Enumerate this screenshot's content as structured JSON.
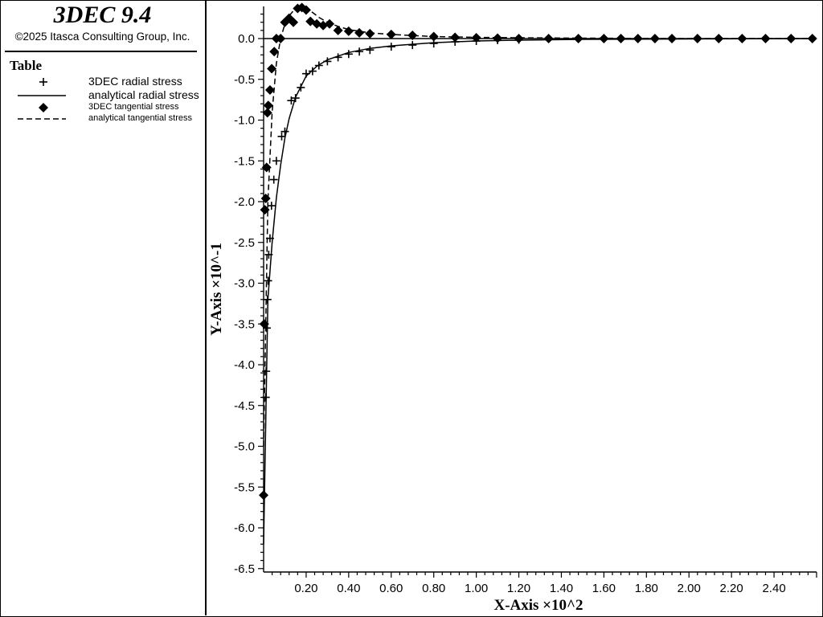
{
  "header": {
    "app_title": "3DEC 9.4",
    "copyright": "©2025 Itasca Consulting Group, Inc."
  },
  "legend": {
    "heading": "Table",
    "items": [
      {
        "label": "3DEC radial stress",
        "symbol": "plus-marker-icon"
      },
      {
        "label": "analytical radial stress",
        "symbol": "solid-line-icon"
      },
      {
        "label": "3DEC tangential stress",
        "symbol": "diamond-marker-icon"
      },
      {
        "label": "analytical tangential stress",
        "symbol": "dashed-line-icon"
      }
    ]
  },
  "chart_data": {
    "type": "line",
    "xlabel": "X-Axis ×10^2",
    "ylabel": "Y-Axis ×10^-1",
    "xlim": [
      0,
      2.6
    ],
    "ylim": [
      -6.5,
      0.4
    ],
    "x_ticks": [
      "0.20",
      "0.40",
      "0.60",
      "0.80",
      "1.00",
      "1.20",
      "1.40",
      "1.60",
      "1.80",
      "2.00",
      "2.20",
      "2.40"
    ],
    "y_ticks": [
      "0.0",
      "-0.5",
      "-1.0",
      "-1.5",
      "-2.0",
      "-2.5",
      "-3.0",
      "-3.5",
      "-4.0",
      "-4.5",
      "-5.0",
      "-5.5",
      "-6.0",
      "-6.5"
    ],
    "grid": false,
    "series": [
      {
        "name": "3DEC radial stress",
        "style": "plus",
        "x": [
          0.01,
          0.012,
          0.015,
          0.018,
          0.021,
          0.024,
          0.03,
          0.037,
          0.048,
          0.06,
          0.085,
          0.1,
          0.13,
          0.15,
          0.175,
          0.2,
          0.23,
          0.26,
          0.3,
          0.35,
          0.4,
          0.45,
          0.5,
          0.6,
          0.7,
          0.8,
          0.9,
          1.0,
          1.1,
          1.2
        ],
        "y": [
          -4.4,
          -4.08,
          -3.55,
          -3.2,
          -2.97,
          -2.65,
          -2.45,
          -2.05,
          -1.73,
          -1.5,
          -1.2,
          -1.14,
          -0.76,
          -0.73,
          -0.6,
          -0.43,
          -0.4,
          -0.33,
          -0.28,
          -0.23,
          -0.19,
          -0.16,
          -0.14,
          -0.1,
          -0.08,
          -0.06,
          -0.04,
          -0.03,
          -0.02,
          -0.015
        ]
      },
      {
        "name": "analytical radial stress",
        "style": "solid",
        "x": [
          0.0,
          0.02,
          0.04,
          0.06,
          0.08,
          0.1,
          0.12,
          0.15,
          0.2,
          0.25,
          0.3,
          0.4,
          0.5,
          0.6,
          0.8,
          1.0,
          1.2,
          1.5,
          2.0,
          2.58
        ],
        "y": [
          -6.2,
          -3.2,
          -2.5,
          -1.95,
          -1.55,
          -1.22,
          -0.98,
          -0.72,
          -0.46,
          -0.34,
          -0.26,
          -0.17,
          -0.12,
          -0.09,
          -0.05,
          -0.03,
          -0.02,
          -0.01,
          -0.005,
          0.0
        ]
      },
      {
        "name": "3DEC tangential stress",
        "style": "diamond",
        "x": [
          0.0,
          0.003,
          0.006,
          0.01,
          0.014,
          0.018,
          0.022,
          0.03,
          0.038,
          0.05,
          0.06,
          0.08,
          0.1,
          0.12,
          0.14,
          0.16,
          0.18,
          0.2,
          0.22,
          0.25,
          0.28,
          0.31,
          0.35,
          0.4,
          0.45,
          0.5,
          0.6,
          0.7,
          0.8,
          0.9,
          1.0,
          1.1,
          1.2,
          1.34,
          1.48,
          1.6,
          1.68,
          1.76,
          1.84,
          1.92,
          2.04,
          2.14,
          2.25,
          2.36,
          2.48,
          2.58
        ],
        "y": [
          -5.6,
          -3.5,
          -2.1,
          -1.96,
          -1.58,
          -0.91,
          -0.82,
          -0.63,
          -0.37,
          -0.16,
          0.0,
          0.0,
          0.2,
          0.25,
          0.2,
          0.37,
          0.38,
          0.35,
          0.21,
          0.18,
          0.16,
          0.18,
          0.1,
          0.09,
          0.07,
          0.06,
          0.05,
          0.04,
          0.025,
          0.015,
          0.01,
          0.005,
          0.0,
          0.0,
          0.0,
          0.0,
          0.0,
          0.0,
          0.0,
          0.0,
          0.0,
          0.0,
          0.0,
          0.0,
          0.0,
          0.0
        ]
      },
      {
        "name": "analytical tangential stress",
        "style": "dashed",
        "x": [
          0.0,
          0.02,
          0.04,
          0.06,
          0.08,
          0.1,
          0.12,
          0.14,
          0.16,
          0.18,
          0.2,
          0.23,
          0.26,
          0.3,
          0.35,
          0.4,
          0.5,
          0.6,
          0.8,
          1.0,
          1.2,
          1.5,
          2.0,
          2.58
        ],
        "y": [
          -5.0,
          -2.0,
          -0.9,
          -0.3,
          0.0,
          0.18,
          0.28,
          0.34,
          0.37,
          0.38,
          0.37,
          0.32,
          0.26,
          0.2,
          0.15,
          0.11,
          0.07,
          0.05,
          0.025,
          0.015,
          0.01,
          0.005,
          0.0,
          0.0
        ]
      }
    ]
  }
}
